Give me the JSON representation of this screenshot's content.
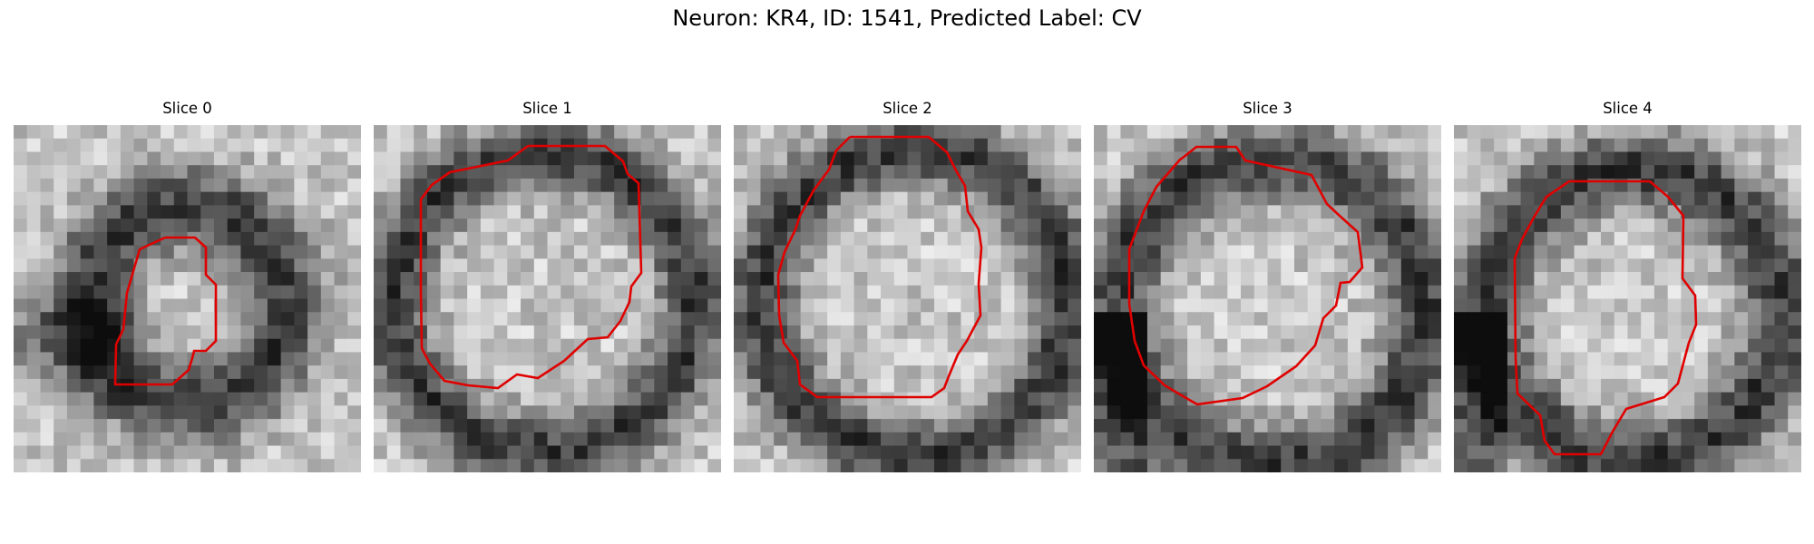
{
  "figure": {
    "title": "Neuron: KR4, ID: 1541, Predicted Label: CV",
    "contour_color": "#e00000",
    "colormap": "gray",
    "panels": [
      {
        "title": "Slice 0"
      },
      {
        "title": "Slice 1"
      },
      {
        "title": "Slice 2"
      },
      {
        "title": "Slice 3"
      },
      {
        "title": "Slice 4"
      }
    ]
  }
}
